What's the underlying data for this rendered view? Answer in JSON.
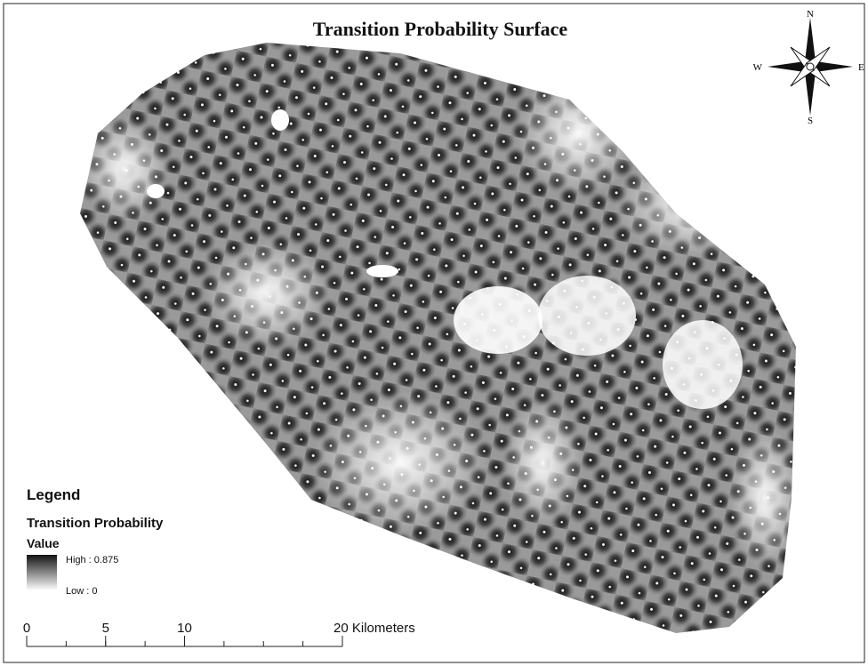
{
  "title": "Transition Probability Surface",
  "compass": {
    "north": "N",
    "south": "S",
    "east": "E",
    "west": "W"
  },
  "legend": {
    "heading": "Legend",
    "layer": "Transition Probability",
    "field": "Value",
    "high_label": "High : 0.875",
    "low_label": "Low : 0"
  },
  "scale_bar": {
    "ticks": [
      0,
      5,
      10,
      {
        "value": 20,
        "label": "20 Kilometers"
      }
    ]
  }
}
